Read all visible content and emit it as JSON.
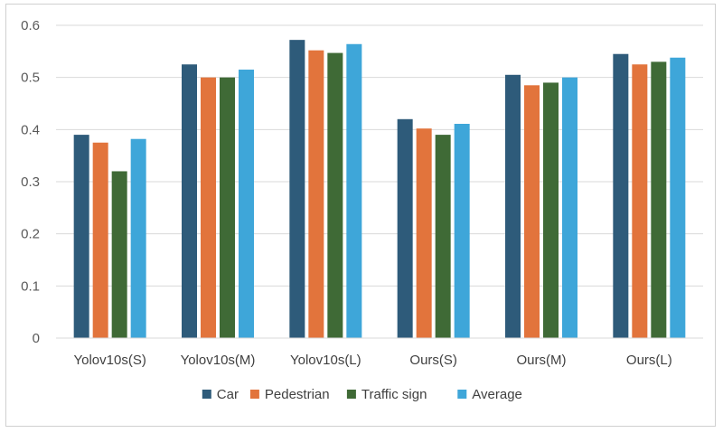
{
  "chart_data": {
    "type": "bar",
    "title": "",
    "xlabel": "",
    "ylabel": "",
    "ylim": [
      0,
      0.6
    ],
    "yticks": [
      "0",
      "0.1",
      "0.2",
      "0.3",
      "0.4",
      "0.5",
      "0.6"
    ],
    "grid": true,
    "legend_position": "bottom",
    "categories": [
      "Yolov10s(S)",
      "Yolov10s(M)",
      "Yolov10s(L)",
      "Ours(S)",
      "Ours(M)",
      "Ours(L)"
    ],
    "series": [
      {
        "name": "Car",
        "color": "#2e5b7a",
        "values": [
          0.39,
          0.525,
          0.572,
          0.42,
          0.505,
          0.545
        ]
      },
      {
        "name": "Pedestrian",
        "color": "#e2743c",
        "values": [
          0.375,
          0.5,
          0.552,
          0.402,
          0.485,
          0.525
        ]
      },
      {
        "name": "Traffic sign",
        "color": "#3f6a36",
        "values": [
          0.32,
          0.5,
          0.547,
          0.39,
          0.49,
          0.53
        ]
      },
      {
        "name": "Average",
        "color": "#3ea6d9",
        "values": [
          0.382,
          0.515,
          0.564,
          0.411,
          0.5,
          0.538
        ]
      }
    ]
  }
}
